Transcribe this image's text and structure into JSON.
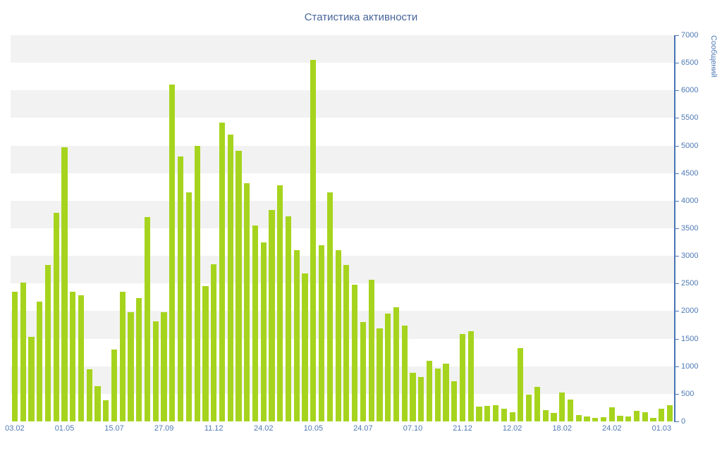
{
  "chart_data": {
    "type": "bar",
    "title": "Статистика активности",
    "xlabel": "",
    "ylabel": "Сообщений",
    "ylim": [
      0,
      7000
    ],
    "y_tick_step": 500,
    "y_ticks": [
      0,
      500,
      1000,
      1500,
      2000,
      2500,
      3000,
      3500,
      4000,
      4500,
      5000,
      5500,
      6000,
      6500,
      7000
    ],
    "y_axis_position": "right",
    "grid": "alternating-horizontal-bands",
    "legend_position": "none",
    "x_tick_every": 6,
    "x_tick_labels": [
      "03.02",
      "01.05",
      "15.07",
      "27.09",
      "11.12",
      "24.02",
      "10.05",
      "24.07",
      "07.10",
      "21.12",
      "12.02",
      "18.02",
      "24.02",
      "01.03"
    ],
    "values": [
      2350,
      2520,
      1530,
      2170,
      2840,
      3780,
      4970,
      2350,
      2290,
      950,
      640,
      380,
      1300,
      2350,
      1980,
      2240,
      3700,
      1810,
      1980,
      6100,
      4800,
      4150,
      5000,
      2450,
      2850,
      5420,
      5200,
      4900,
      4320,
      3550,
      3250,
      3830,
      4280,
      3720,
      3100,
      2680,
      6550,
      3200,
      4150,
      3100,
      2840,
      2480,
      1800,
      2570,
      1680,
      1950,
      2070,
      1740,
      880,
      800,
      1100,
      960,
      1050,
      730,
      1580,
      1640,
      270,
      280,
      290,
      230,
      160,
      1330,
      480,
      620,
      200,
      150,
      530,
      400,
      120,
      90,
      60,
      80,
      250,
      100,
      90,
      190,
      160,
      60,
      230,
      300
    ],
    "colors": {
      "bar": "#a6d41e",
      "band": "#f2f2f2",
      "background": "#ffffff",
      "axis_line": "#4a74b4",
      "axis_text": "#4f7ab5",
      "title": "#47659a"
    }
  }
}
